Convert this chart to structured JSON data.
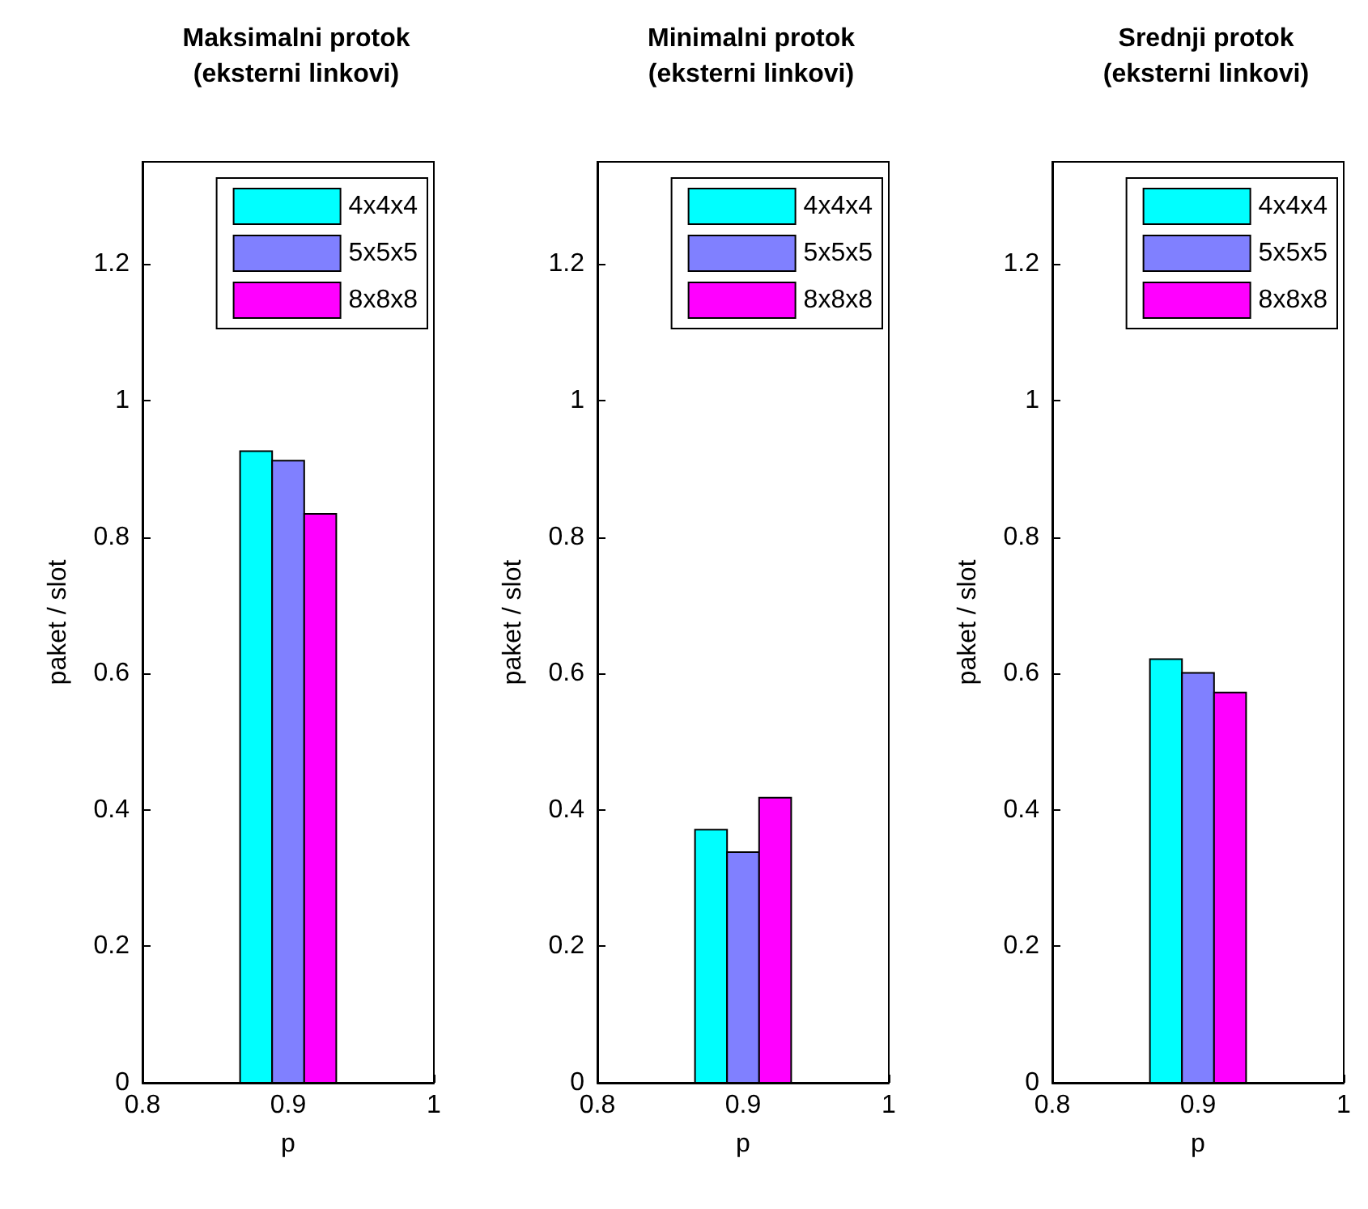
{
  "chart_data": [
    {
      "type": "bar",
      "title": "Maksimalni protok\n(eksterni linkovi)",
      "xlabel": "p",
      "ylabel": "paket / slot",
      "xlim": [
        0.8,
        1
      ],
      "xticks": [
        0.8,
        0.9,
        1
      ],
      "ylim": [
        0,
        1.35
      ],
      "yticks": [
        0,
        0.2,
        0.4,
        0.6,
        0.8,
        1,
        1.2
      ],
      "grid": false,
      "legend": "top right",
      "series": [
        {
          "name": "4x4x4",
          "color": "#00ffff",
          "x": [
            0.878
          ],
          "values": [
            0.926
          ]
        },
        {
          "name": "5x5x5",
          "color": "#8080ff",
          "x": [
            0.9
          ],
          "values": [
            0.912
          ]
        },
        {
          "name": "8x8x8",
          "color": "#ff00ff",
          "x": [
            0.922
          ],
          "values": [
            0.834
          ]
        }
      ]
    },
    {
      "type": "bar",
      "title": "Minimalni protok\n(eksterni linkovi)",
      "xlabel": "p",
      "ylabel": "paket / slot",
      "xlim": [
        0.8,
        1
      ],
      "xticks": [
        0.8,
        0.9,
        1
      ],
      "ylim": [
        0,
        1.35
      ],
      "yticks": [
        0,
        0.2,
        0.4,
        0.6,
        0.8,
        1,
        1.2
      ],
      "grid": false,
      "legend": "top right",
      "series": [
        {
          "name": "4x4x4",
          "color": "#00ffff",
          "x": [
            0.878
          ],
          "values": [
            0.371
          ]
        },
        {
          "name": "5x5x5",
          "color": "#8080ff",
          "x": [
            0.9
          ],
          "values": [
            0.338
          ]
        },
        {
          "name": "8x8x8",
          "color": "#ff00ff",
          "x": [
            0.922
          ],
          "values": [
            0.418
          ]
        }
      ]
    },
    {
      "type": "bar",
      "title": "Srednji protok\n(eksterni linkovi)",
      "xlabel": "p",
      "ylabel": "paket / slot",
      "xlim": [
        0.8,
        1
      ],
      "xticks": [
        0.8,
        0.9,
        1
      ],
      "ylim": [
        0,
        1.35
      ],
      "yticks": [
        0,
        0.2,
        0.4,
        0.6,
        0.8,
        1,
        1.2
      ],
      "grid": false,
      "legend": "top right",
      "series": [
        {
          "name": "4x4x4",
          "color": "#00ffff",
          "x": [
            0.878
          ],
          "values": [
            0.621
          ]
        },
        {
          "name": "5x5x5",
          "color": "#8080ff",
          "x": [
            0.9
          ],
          "values": [
            0.601
          ]
        },
        {
          "name": "8x8x8",
          "color": "#ff00ff",
          "x": [
            0.922
          ],
          "values": [
            0.572
          ]
        }
      ]
    }
  ]
}
